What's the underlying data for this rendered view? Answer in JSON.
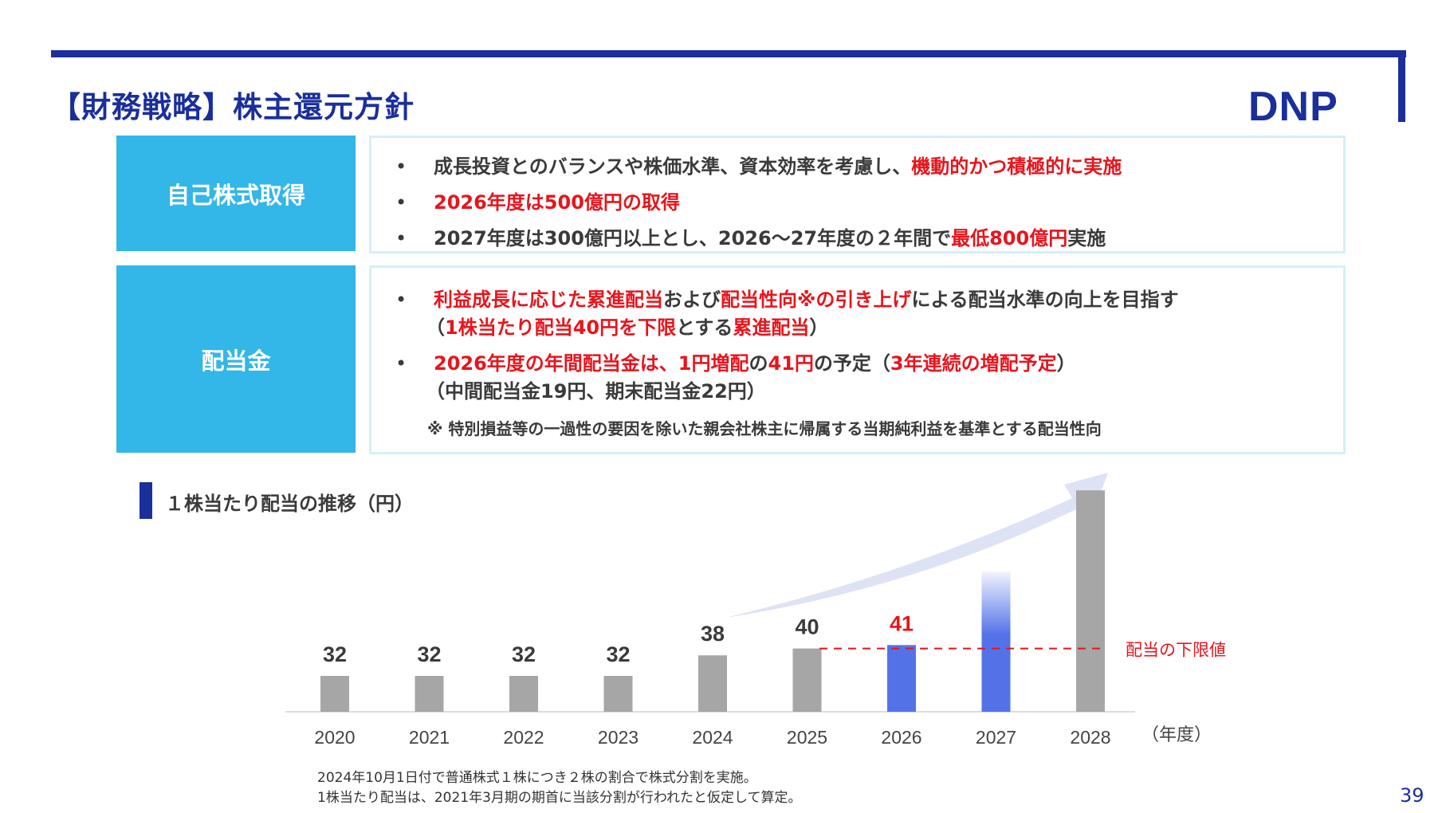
{
  "header": {
    "title": "【財務戦略】株主還元方針",
    "logo": "DNP"
  },
  "buyback": {
    "label": "自己株式取得",
    "bullet_char": "•",
    "b1": {
      "normal": "成長投資とのバランスや株価水準、資本効率を考慮し、",
      "red": "機動的かつ積極的に実施"
    },
    "b2": {
      "red": "2026年度は500億円の取得"
    },
    "b3": {
      "normal": "2027年度は300億円以上とし、2026～27年度の２年間で",
      "red": "最低800億円",
      "tail": "実施"
    }
  },
  "dividend": {
    "label": "配当金",
    "bullet_char": "•",
    "b1": {
      "red1": "利益成長に応じた累進配当",
      "n1": "および",
      "red2": "配当性向※の引き上げ",
      "n2": "による配当水準の向上を目指す"
    },
    "b1_sub": {
      "p1": "（",
      "red1": "1株当たり配当40円を下限",
      "p2": "とする",
      "red2": "累進配当",
      "p3": "）"
    },
    "b2": {
      "red1": "2026年度の年間配当金は、1円増配",
      "n1": "の",
      "red2": "41円",
      "n2": "の予定（",
      "red3": "3年連続の増配予定",
      "n3": "）"
    },
    "b2_sub": "（中間配当金19円、期末配当金22円）",
    "note": "※ 特別損益等の一過性の要因を除いた親会社株主に帰属する当期純利益を基準とする配当性向"
  },
  "chart_section": {
    "title": "１株当たり配当の推移（円）"
  },
  "chart_data": {
    "type": "bar",
    "categories": [
      "2020",
      "2021",
      "2022",
      "2023",
      "2024",
      "2025",
      "2026",
      "2027",
      "2028"
    ],
    "values": [
      32,
      32,
      32,
      32,
      38,
      40,
      41,
      null,
      null
    ],
    "value_labels": [
      "32",
      "32",
      "32",
      "32",
      "38",
      "40",
      "41",
      "",
      ""
    ],
    "illustrative_values": [
      null,
      null,
      null,
      null,
      null,
      null,
      null,
      50,
      60
    ],
    "xlabel": "（年度）",
    "floor_line": {
      "value": 40,
      "label": "配当の下限値",
      "color": "#e8141c"
    },
    "colors": {
      "actual": "#a6a6a6",
      "plan": "#5472e8",
      "highlight_label": "#e8141c",
      "arrow": "#dde2f4"
    }
  },
  "footnotes": [
    "2024年10月1日付で普通株式１株につき２株の割合で株式分割を実施。",
    "1株当たり配当は、2021年3月期の期首に当該分割が行われたと仮定して算定。"
  ],
  "page_number": "39"
}
